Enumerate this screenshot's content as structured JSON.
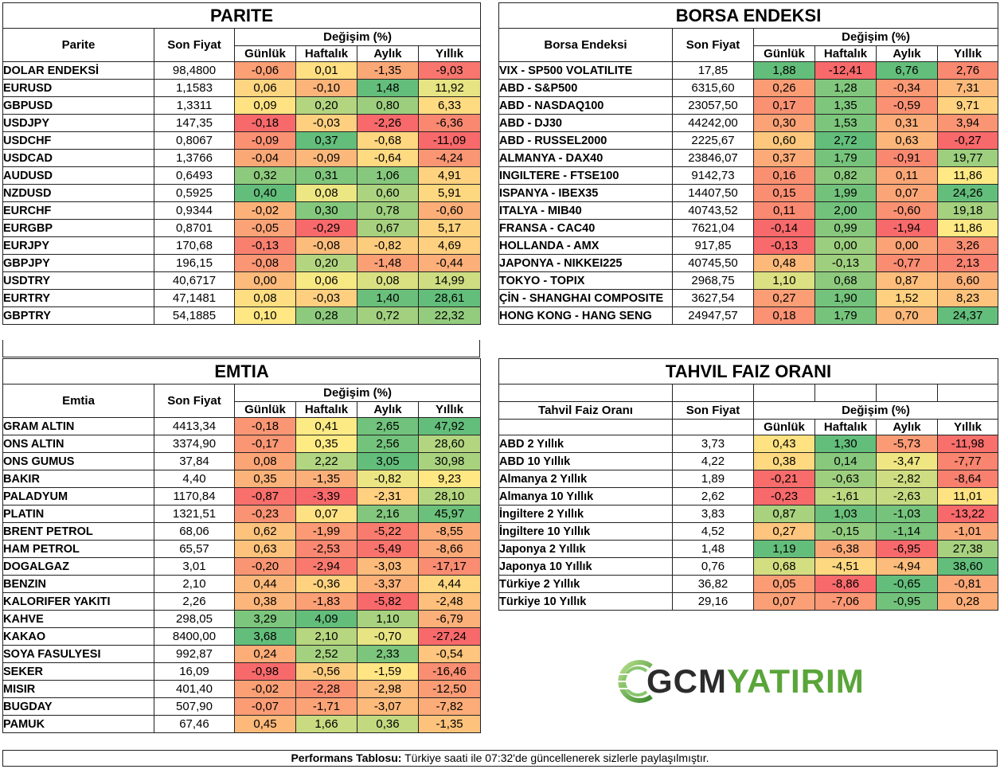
{
  "parite": {
    "title": "PARITE",
    "h_name": "Parite",
    "h_price": "Son Fiyat",
    "h_change": "Değişim (%)",
    "h_d": "Günlük",
    "h_w": "Haftalık",
    "h_m": "Aylık",
    "h_y": "Yıllık",
    "rows": [
      [
        "DOLAR ENDEKSİ",
        "98,4800",
        "-0,06",
        "0,01",
        "-1,35",
        "-9,03"
      ],
      [
        "EURUSD",
        "1,1583",
        "0,06",
        "-0,10",
        "1,48",
        "11,92"
      ],
      [
        "GBPUSD",
        "1,3311",
        "0,09",
        "0,20",
        "0,80",
        "6,33"
      ],
      [
        "USDJPY",
        "147,35",
        "-0,18",
        "-0,03",
        "-2,26",
        "-6,36"
      ],
      [
        "USDCHF",
        "0,8067",
        "-0,09",
        "0,37",
        "-0,68",
        "-11,09"
      ],
      [
        "USDCAD",
        "1,3766",
        "-0,04",
        "-0,09",
        "-0,64",
        "-4,24"
      ],
      [
        "AUDUSD",
        "0,6493",
        "0,32",
        "0,31",
        "1,06",
        "4,91"
      ],
      [
        "NZDUSD",
        "0,5925",
        "0,40",
        "0,08",
        "0,60",
        "5,91"
      ],
      [
        "EURCHF",
        "0,9344",
        "-0,02",
        "0,30",
        "0,78",
        "-0,60"
      ],
      [
        "EURGBP",
        "0,8701",
        "-0,05",
        "-0,29",
        "0,67",
        "5,17"
      ],
      [
        "EURJPY",
        "170,68",
        "-0,13",
        "-0,08",
        "-0,82",
        "4,69"
      ],
      [
        "GBPJPY",
        "196,15",
        "-0,08",
        "0,20",
        "-1,48",
        "-0,44"
      ],
      [
        "USDTRY",
        "40,6717",
        "0,00",
        "0,06",
        "0,08",
        "14,99"
      ],
      [
        "EURTRY",
        "47,1481",
        "0,08",
        "-0,03",
        "1,40",
        "28,61"
      ],
      [
        "GBPTRY",
        "54,1885",
        "0,10",
        "0,28",
        "0,72",
        "22,32"
      ]
    ]
  },
  "borsa": {
    "title": "BORSA ENDEKSI",
    "h_name": "Borsa Endeksi",
    "h_price": "Son Fiyat",
    "h_change": "Değişim (%)",
    "h_d": "Günlük",
    "h_w": "Haftalık",
    "h_m": "Aylık",
    "h_y": "Yıllık",
    "rows": [
      [
        "VIX  - SP500 VOLATILITE",
        "17,85",
        "1,88",
        "-12,41",
        "6,76",
        "2,76"
      ],
      [
        "ABD - S&P500",
        "6315,60",
        "0,26",
        "1,28",
        "-0,34",
        "7,31"
      ],
      [
        "ABD - NASDAQ100",
        "23057,50",
        "0,17",
        "1,35",
        "-0,59",
        "9,71"
      ],
      [
        "ABD - DJ30",
        "44242,00",
        "0,30",
        "1,53",
        "0,31",
        "3,94"
      ],
      [
        "ABD - RUSSEL2000",
        "2225,67",
        "0,60",
        "2,72",
        "0,63",
        "-0,27"
      ],
      [
        "ALMANYA - DAX40",
        "23846,07",
        "0,37",
        "1,79",
        "-0,91",
        "19,77"
      ],
      [
        "INGILTERE - FTSE100",
        "9142,73",
        "0,16",
        "0,82",
        "0,11",
        "11,86"
      ],
      [
        "ISPANYA - IBEX35",
        "14407,50",
        "0,15",
        "1,99",
        "0,07",
        "24,26"
      ],
      [
        "ITALYA - MIB40",
        "40743,52",
        "0,11",
        "2,00",
        "-0,60",
        "19,18"
      ],
      [
        "FRANSA - CAC40",
        "7621,04",
        "-0,14",
        "0,99",
        "-1,94",
        "11,86"
      ],
      [
        "HOLLANDA - AMX",
        "917,85",
        "-0,13",
        "0,00",
        "0,00",
        "3,26"
      ],
      [
        "JAPONYA - NIKKEI225",
        "40745,50",
        "0,48",
        "-0,13",
        "-0,77",
        "2,13"
      ],
      [
        "TOKYO - TOPIX",
        "2968,75",
        "1,10",
        "0,68",
        "0,87",
        "6,60"
      ],
      [
        "ÇİN - SHANGHAI COMPOSITE",
        "3627,54",
        "0,27",
        "1,90",
        "1,52",
        "8,23"
      ],
      [
        "HONG KONG - HANG SENG",
        "24947,57",
        "0,18",
        "1,79",
        "0,70",
        "24,37"
      ]
    ]
  },
  "emtia": {
    "title": "EMTIA",
    "h_name": "Emtia",
    "h_price": "Son Fiyat",
    "h_change": "Değişim (%)",
    "h_d": "Günlük",
    "h_w": "Haftalık",
    "h_m": "Aylık",
    "h_y": "Yıllık",
    "rows": [
      [
        "GRAM ALTIN",
        "4413,34",
        "-0,18",
        "0,41",
        "2,65",
        "47,92"
      ],
      [
        "ONS ALTIN",
        "3374,90",
        "-0,17",
        "0,35",
        "2,56",
        "28,60"
      ],
      [
        "ONS GUMUS",
        "37,84",
        "0,08",
        "2,22",
        "3,05",
        "30,98"
      ],
      [
        "BAKIR",
        "4,40",
        "0,35",
        "-1,35",
        "-0,82",
        "9,23"
      ],
      [
        "PALADYUM",
        "1170,84",
        "-0,87",
        "-3,39",
        "-2,31",
        "28,10"
      ],
      [
        "PLATIN",
        "1321,51",
        "-0,23",
        "0,07",
        "2,16",
        "45,97"
      ],
      [
        "BRENT PETROL",
        "68,06",
        "0,62",
        "-1,99",
        "-5,22",
        "-8,55"
      ],
      [
        "HAM PETROL",
        "65,57",
        "0,63",
        "-2,53",
        "-5,49",
        "-8,66"
      ],
      [
        "DOGALGAZ",
        "3,01",
        "-0,20",
        "-2,94",
        "-3,03",
        "-17,17"
      ],
      [
        "BENZIN",
        "2,10",
        "0,44",
        "-0,36",
        "-3,37",
        "4,44"
      ],
      [
        "KALORIFER YAKITI",
        "2,26",
        "0,38",
        "-1,83",
        "-5,82",
        "-2,48"
      ],
      [
        "KAHVE",
        "298,05",
        "3,29",
        "4,09",
        "1,10",
        "-6,79"
      ],
      [
        "KAKAO",
        "8400,00",
        "3,68",
        "2,10",
        "-0,70",
        "-27,24"
      ],
      [
        "SOYA FASULYESI",
        "992,87",
        "0,24",
        "2,52",
        "2,33",
        "-0,54"
      ],
      [
        "SEKER",
        "16,09",
        "-0,98",
        "-0,56",
        "-1,59",
        "-16,46"
      ],
      [
        "MISIR",
        "401,40",
        "-0,02",
        "-2,28",
        "-2,98",
        "-12,50"
      ],
      [
        "BUGDAY",
        "507,90",
        "-0,07",
        "-1,71",
        "-3,07",
        "-7,82"
      ],
      [
        "PAMUK",
        "67,46",
        "0,45",
        "1,66",
        "0,36",
        "-1,35"
      ]
    ]
  },
  "tahvil": {
    "title": "TAHVIL FAIZ ORANI",
    "h_name": "Tahvil Faiz Oranı",
    "h_price": "Son Fiyat",
    "h_change": "Değişim (%)",
    "h_d": "Günlük",
    "h_w": "Haftalık",
    "h_m": "Aylık",
    "h_y": "Yıllık",
    "rows": [
      [
        "ABD 2 Yıllık",
        "3,73",
        "0,43",
        "1,30",
        "-5,73",
        "-11,98"
      ],
      [
        "ABD 10 Yıllık",
        "4,22",
        "0,38",
        "0,14",
        "-3,47",
        "-7,77"
      ],
      [
        "Almanya 2 Yıllık",
        "1,89",
        "-0,21",
        "-0,63",
        "-2,82",
        "-8,64"
      ],
      [
        "Almanya 10 Yıllık",
        "2,62",
        "-0,23",
        "-1,61",
        "-2,63",
        "11,01"
      ],
      [
        "İngiltere 2 Yıllık",
        "3,83",
        "0,87",
        "1,03",
        "-1,03",
        "-13,22"
      ],
      [
        "İngiltere 10 Yıllık",
        "4,52",
        "0,27",
        "-0,15",
        "-1,14",
        "-1,01"
      ],
      [
        "Japonya 2 Yıllık",
        "1,48",
        "1,19",
        "-6,38",
        "-6,95",
        "27,38"
      ],
      [
        "Japonya 10 Yıllık",
        "0,76",
        "0,68",
        "-4,51",
        "-4,94",
        "38,60"
      ],
      [
        "Türkiye 2 Yıllık",
        "36,82",
        "0,05",
        "-8,86",
        "-0,65",
        "-0,81"
      ],
      [
        "Türkiye 10 Yıllık",
        "29,16",
        "0,07",
        "-7,06",
        "-0,95",
        "0,28"
      ]
    ]
  },
  "logo": {
    "part1": "GCM",
    "part2": "YATIRIM"
  },
  "footer": {
    "bold": "Performans Tablosu:",
    "text": " Türkiye saati ile 07:32'de güncellenerek sizlerle paylaşılmıştır."
  },
  "colors": {
    "red": "#f8696b",
    "yellow": "#ffeb84",
    "green": "#63be7b",
    "border": "#222222",
    "logo_dark": "#2c2c2c",
    "logo_green": "#5aa53a"
  }
}
